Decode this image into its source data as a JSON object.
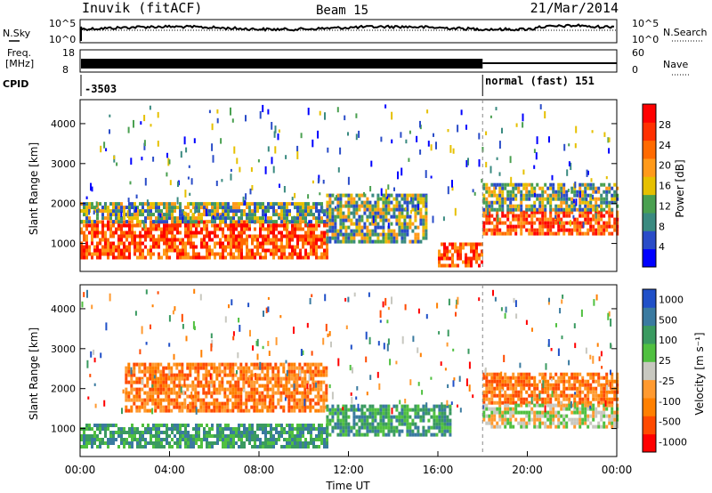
{
  "header": {
    "station": "Inuvik (fitACF)",
    "beam": "Beam 15",
    "date": "21/Mar/2014"
  },
  "noise_panel": {
    "left_label": "N.Sky",
    "right_label": "N.Search",
    "left_ticks": [
      "10^5",
      "10^0"
    ],
    "right_ticks": [
      "10^5",
      "10^0"
    ]
  },
  "freq_panel": {
    "left_label_1": "Freq.",
    "left_label_2": "[MHz]",
    "left_tick_top": "18",
    "left_tick_bottom": "8",
    "right_label": "Nave",
    "right_tick_top": "60",
    "right_tick_bottom": "0",
    "step_fraction": 0.75
  },
  "cpid": {
    "label": "CPID",
    "segments": [
      {
        "text": "-3503"
      },
      {
        "text": "normal (fast) 151"
      }
    ],
    "switch_time_hours": 18
  },
  "colors": {
    "power_scale": [
      "#0000ff",
      "#2a4cc8",
      "#3a8a80",
      "#4aa050",
      "#e6c000",
      "#ff9a1a",
      "#ff6a00",
      "#ff3000",
      "#ff0000"
    ],
    "velocity_scale": [
      "#ff0000",
      "#ff4a00",
      "#ff8000",
      "#ff9a30",
      "#c8c8c0",
      "#50c040",
      "#3a9a60",
      "#3a7aa0",
      "#2050c8"
    ]
  },
  "chart_data": [
    {
      "type": "heatmap",
      "title": "Power",
      "ylabel": "Slant Range [km]",
      "ylim": [
        300,
        4600
      ],
      "yticks": [
        "1000",
        "2000",
        "3000",
        "4000"
      ],
      "xlim_hours": [
        0,
        24
      ],
      "colorbar": {
        "label": "Power [dB]",
        "ticks": [
          "4",
          "8",
          "12",
          "16",
          "20",
          "24",
          "28"
        ]
      },
      "bands": [
        {
          "t_start": 0,
          "t_end": 11,
          "r_low": 600,
          "r_high": 1500,
          "value": "high"
        },
        {
          "t_start": 0,
          "t_end": 11,
          "r_low": 1500,
          "r_high": 2000,
          "value": "mid"
        },
        {
          "t_start": 11,
          "t_end": 15.5,
          "r_low": 1000,
          "r_high": 2200,
          "value": "mid"
        },
        {
          "t_start": 16,
          "t_end": 18,
          "r_low": 400,
          "r_high": 1000,
          "value": "high"
        },
        {
          "t_start": 18,
          "t_end": 24,
          "r_low": 1200,
          "r_high": 1800,
          "value": "high"
        },
        {
          "t_start": 18,
          "t_end": 24,
          "r_low": 1800,
          "r_high": 2500,
          "value": "mid"
        }
      ]
    },
    {
      "type": "heatmap",
      "title": "Velocity",
      "ylabel": "Slant Range [km]",
      "ylim": [
        300,
        4600
      ],
      "yticks": [
        "1000",
        "2000",
        "3000",
        "4000"
      ],
      "xlim_hours": [
        0,
        24
      ],
      "xticks": [
        "00:00",
        "04:00",
        "08:00",
        "12:00",
        "16:00",
        "20:00",
        "00:00"
      ],
      "xlabel": "Time UT",
      "colorbar": {
        "label": "Velocity [m s⁻¹]",
        "ticks": [
          "1000",
          "500",
          "100",
          "25",
          "-25",
          "-100",
          "-500",
          "-1000"
        ]
      },
      "bands": [
        {
          "t_start": 0,
          "t_end": 11,
          "r_low": 500,
          "r_high": 1100,
          "value": "positive"
        },
        {
          "t_start": 2,
          "t_end": 11,
          "r_low": 1400,
          "r_high": 2600,
          "value": "negative"
        },
        {
          "t_start": 11,
          "t_end": 16.5,
          "r_low": 800,
          "r_high": 1600,
          "value": "positive"
        },
        {
          "t_start": 18,
          "t_end": 24,
          "r_low": 1600,
          "r_high": 2400,
          "value": "negative"
        },
        {
          "t_start": 18,
          "t_end": 24,
          "r_low": 1000,
          "r_high": 1600,
          "value": "near-zero"
        }
      ]
    }
  ]
}
